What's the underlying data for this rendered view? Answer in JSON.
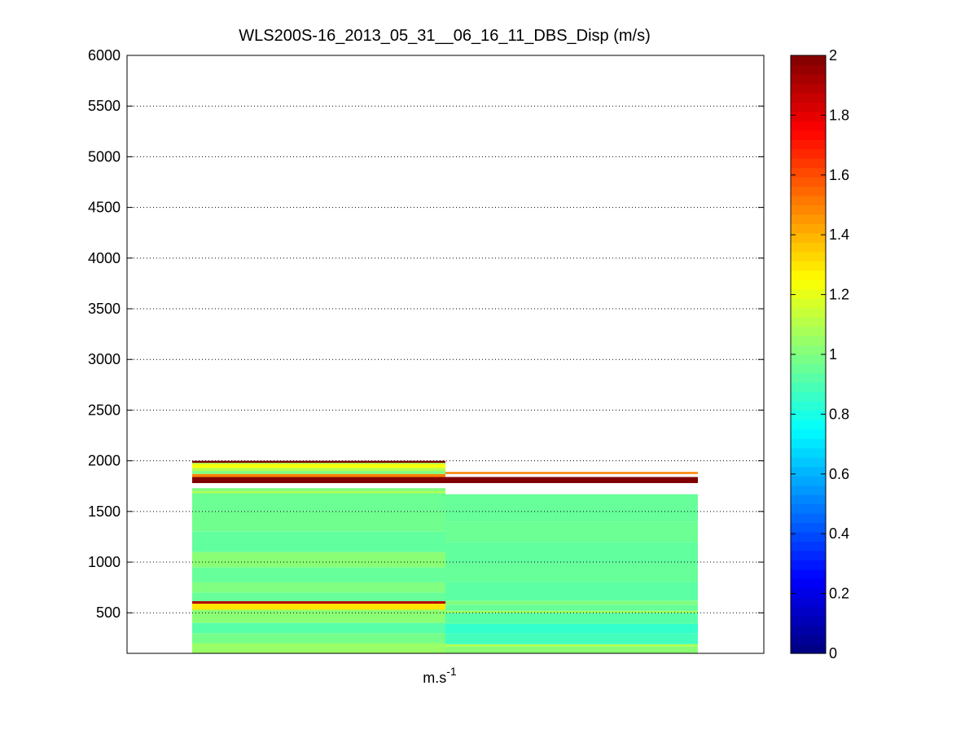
{
  "chart_data": {
    "type": "heatmap",
    "title": "WLS200S-16_2013_05_31__06_16_11_DBS_Disp (m/s)",
    "xlabel": "m.s",
    "xlabel_superscript": "-1",
    "ylabel": "",
    "ylim": [
      100,
      6000
    ],
    "yticks": [
      500,
      1000,
      1500,
      2000,
      2500,
      3000,
      3500,
      4000,
      4500,
      5000,
      5500,
      6000
    ],
    "ytick_labels": [
      "500",
      "1000",
      "1500",
      "2000",
      "2500",
      "3000",
      "3500",
      "4000",
      "4500",
      "5000",
      "5500",
      "6000"
    ],
    "grid": "y-dotted",
    "colormap": "jet",
    "colorbar": {
      "range": [
        0,
        2
      ],
      "ticks": [
        0,
        0.2,
        0.4,
        0.6,
        0.8,
        1,
        1.2,
        1.4,
        1.6,
        1.8,
        2
      ],
      "tick_labels": [
        "0",
        "0.2",
        "0.4",
        "0.6",
        "0.8",
        "1",
        "1.2",
        "1.4",
        "1.6",
        "1.8",
        "2"
      ]
    },
    "columns": [
      {
        "bands": [
          {
            "from": 100,
            "to": 200,
            "value": 1.05
          },
          {
            "from": 200,
            "to": 300,
            "value": 0.98
          },
          {
            "from": 300,
            "to": 400,
            "value": 0.92
          },
          {
            "from": 400,
            "to": 530,
            "value": 1.02
          },
          {
            "from": 530,
            "to": 590,
            "value": 1.3
          },
          {
            "from": 590,
            "to": 615,
            "value": 1.9
          },
          {
            "from": 615,
            "to": 700,
            "value": 0.95
          },
          {
            "from": 700,
            "to": 800,
            "value": 1.0
          },
          {
            "from": 800,
            "to": 950,
            "value": 0.95
          },
          {
            "from": 950,
            "to": 1100,
            "value": 1.02
          },
          {
            "from": 1100,
            "to": 1300,
            "value": 0.94
          },
          {
            "from": 1300,
            "to": 1500,
            "value": 0.97
          },
          {
            "from": 1500,
            "to": 1680,
            "value": 0.96
          },
          {
            "from": 1680,
            "to": 1700,
            "value": 1.1
          },
          {
            "from": 1700,
            "to": 1730,
            "value": 1.0
          },
          {
            "from": 1780,
            "to": 1840,
            "value": 2.0
          },
          {
            "from": 1840,
            "to": 1870,
            "value": 1.5
          },
          {
            "from": 1870,
            "to": 1900,
            "value": 1.0
          },
          {
            "from": 1900,
            "to": 1930,
            "value": 1.1
          },
          {
            "from": 1930,
            "to": 1965,
            "value": 1.25
          },
          {
            "from": 1965,
            "to": 1980,
            "value": 1.1
          },
          {
            "from": 1980,
            "to": 2000,
            "value": 2.0
          }
        ]
      },
      {
        "bands": [
          {
            "from": 100,
            "to": 170,
            "value": 1.02
          },
          {
            "from": 170,
            "to": 190,
            "value": 1.1
          },
          {
            "from": 190,
            "to": 300,
            "value": 0.88
          },
          {
            "from": 300,
            "to": 390,
            "value": 0.85
          },
          {
            "from": 390,
            "to": 500,
            "value": 0.92
          },
          {
            "from": 500,
            "to": 520,
            "value": 1.08
          },
          {
            "from": 520,
            "to": 580,
            "value": 0.95
          },
          {
            "from": 580,
            "to": 620,
            "value": 1.0
          },
          {
            "from": 620,
            "to": 800,
            "value": 0.93
          },
          {
            "from": 800,
            "to": 1000,
            "value": 0.95
          },
          {
            "from": 1000,
            "to": 1200,
            "value": 0.94
          },
          {
            "from": 1200,
            "to": 1400,
            "value": 0.96
          },
          {
            "from": 1400,
            "to": 1670,
            "value": 0.95
          },
          {
            "from": 1780,
            "to": 1840,
            "value": 2.0
          },
          {
            "from": 1870,
            "to": 1890,
            "value": 1.5
          }
        ]
      }
    ]
  }
}
